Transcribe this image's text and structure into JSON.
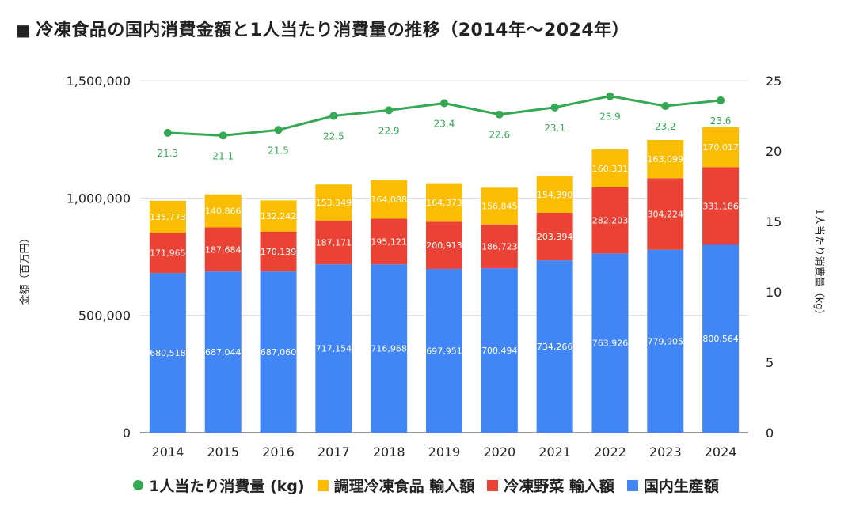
{
  "title": "冷凍食品の国内消費金額と1人当たり消費量の推移（2014年～2024年）",
  "title_marker": "■",
  "colors": {
    "domestic": "#4285f4",
    "frozen_veg": "#ea4335",
    "prepared": "#fbbc04",
    "per_capita": "#34a853",
    "grid": "#dddddd",
    "bar_label": "#ffffff",
    "line_label": "#34a853"
  },
  "chart_data": {
    "type": "bar",
    "stacked": true,
    "categories": [
      "2014",
      "2015",
      "2016",
      "2017",
      "2018",
      "2019",
      "2020",
      "2021",
      "2022",
      "2023",
      "2024"
    ],
    "series": [
      {
        "name": "国内生産額",
        "key": "domestic",
        "values": [
          680518,
          687044,
          687060,
          717154,
          716968,
          697951,
          700494,
          734266,
          763926,
          779905,
          800564
        ]
      },
      {
        "name": "冷凍野菜 輸入額",
        "key": "frozen_veg",
        "values": [
          171965,
          187684,
          170139,
          187171,
          195121,
          200913,
          186723,
          203394,
          282203,
          304224,
          331186
        ]
      },
      {
        "name": "調理冷凍食品 輸入額",
        "key": "prepared",
        "values": [
          135773,
          140866,
          132242,
          153349,
          164088,
          164373,
          156845,
          154390,
          160331,
          163099,
          170017
        ]
      }
    ],
    "line_series": {
      "name": "1人当たり消費量 (kg)",
      "key": "per_capita",
      "axis": "right",
      "values": [
        21.3,
        21.1,
        21.5,
        22.5,
        22.9,
        23.4,
        22.6,
        23.1,
        23.9,
        23.2,
        23.6
      ]
    },
    "y_left": {
      "label": "金額（百万円）",
      "min": 0,
      "max": 1500000,
      "ticks": [
        0,
        500000,
        1000000,
        1500000
      ],
      "tick_labels": [
        "0",
        "500,000",
        "1,000,000",
        "1,500,000"
      ]
    },
    "y_right": {
      "label": "1人当たり消費量（kg）",
      "min": 0,
      "max": 25,
      "ticks": [
        0,
        5,
        10,
        15,
        20,
        25
      ],
      "tick_labels": [
        "0",
        "5",
        "10",
        "15",
        "20",
        "25"
      ]
    },
    "grid": true,
    "legend_position": "bottom",
    "legend": [
      "1人当たり消費量 (kg)",
      "調理冷凍食品 輸入額",
      "冷凍野菜 輸入額",
      "国内生産額"
    ]
  }
}
